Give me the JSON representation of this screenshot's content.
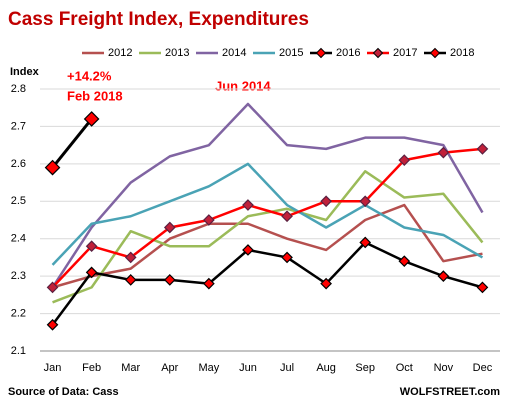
{
  "chart_data": {
    "type": "line",
    "title": "Cass Freight Index, Expenditures",
    "y_label": "Index",
    "source": "Source of Data: Cass",
    "credit": "WOLFSTREET.com",
    "annotations": [
      "+14.2%",
      "Feb 2018",
      "Jun 2014"
    ],
    "categories": [
      "Jan",
      "Feb",
      "Mar",
      "Apr",
      "May",
      "Jun",
      "Jul",
      "Aug",
      "Sep",
      "Oct",
      "Nov",
      "Dec"
    ],
    "ylim": [
      2.1,
      2.8
    ],
    "yticks": [
      {
        "value": 2.1,
        "label": "2.1"
      },
      {
        "value": 2.2,
        "label": "2.2"
      },
      {
        "value": 2.3,
        "label": "2.3"
      },
      {
        "value": 2.4,
        "label": "2.4"
      },
      {
        "value": 2.5,
        "label": "2.5"
      },
      {
        "value": 2.6,
        "label": "2.6"
      },
      {
        "value": 2.7,
        "label": "2.7"
      },
      {
        "value": 2.8,
        "label": "2.8"
      }
    ],
    "grid": true,
    "legend": "top",
    "series": [
      {
        "name": "2012",
        "color": "#b5504f",
        "values": [
          2.27,
          2.3,
          2.32,
          2.4,
          2.44,
          2.44,
          2.4,
          2.37,
          2.45,
          2.49,
          2.34,
          2.36
        ]
      },
      {
        "name": "2013",
        "color": "#9bbb59",
        "values": [
          2.23,
          2.27,
          2.42,
          2.38,
          2.38,
          2.46,
          2.48,
          2.45,
          2.58,
          2.51,
          2.52,
          2.39
        ]
      },
      {
        "name": "2014",
        "color": "#8064a2",
        "values": [
          2.27,
          2.43,
          2.55,
          2.62,
          2.65,
          2.76,
          2.65,
          2.64,
          2.67,
          2.67,
          2.65,
          2.47
        ]
      },
      {
        "name": "2015",
        "color": "#4aa3b5",
        "values": [
          2.33,
          2.44,
          2.46,
          2.5,
          2.54,
          2.6,
          2.49,
          2.43,
          2.49,
          2.43,
          2.41,
          2.35
        ]
      },
      {
        "name": "2016",
        "color": "#000000",
        "marker": "diamond",
        "marker_color": "#ff0000",
        "values": [
          2.17,
          2.31,
          2.29,
          2.29,
          2.28,
          2.37,
          2.35,
          2.28,
          2.39,
          2.34,
          2.3,
          2.27
        ]
      },
      {
        "name": "2017",
        "color": "#ff0000",
        "marker": "diamond",
        "marker_color": "#c0203a",
        "values": [
          2.27,
          2.38,
          2.35,
          2.43,
          2.45,
          2.49,
          2.46,
          2.5,
          2.5,
          2.61,
          2.63,
          2.64
        ]
      },
      {
        "name": "2018",
        "color": "#000000",
        "marker": "diamond",
        "marker_color": "#ff0000",
        "values": [
          2.59,
          2.72,
          null,
          null,
          null,
          null,
          null,
          null,
          null,
          null,
          null,
          null
        ]
      }
    ]
  }
}
